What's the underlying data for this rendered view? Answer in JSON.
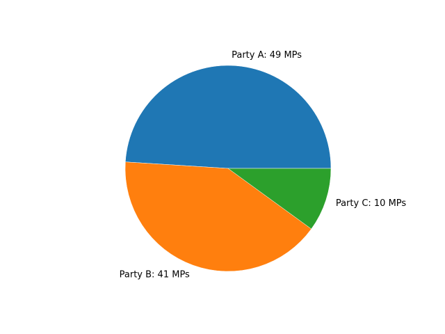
{
  "chart_data": {
    "type": "pie",
    "title": "",
    "start_angle_deg": 0,
    "direction": "counterclockwise",
    "slices": [
      {
        "label": "Party A: 49 MPs",
        "value": 49,
        "color": "#1f77b4"
      },
      {
        "label": "Party B: 41 MPs",
        "value": 41,
        "color": "#ff7f0e"
      },
      {
        "label": "Party C: 10 MPs",
        "value": 10,
        "color": "#2ca02c"
      }
    ]
  }
}
